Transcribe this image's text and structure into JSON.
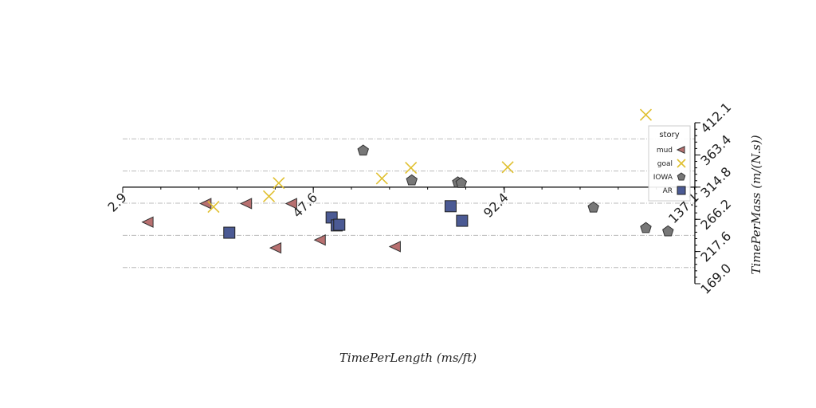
{
  "chart_data": {
    "type": "scatter",
    "xlabel": "TimePerLength (ms/ft)",
    "ylabel": "TimePerMass (m/(N.s))",
    "xlim": [
      2.9,
      137.1
    ],
    "ylim": [
      169.0,
      412.1
    ],
    "x_ticks": [
      "2.9",
      "47.6",
      "92.4",
      "137.1"
    ],
    "y_ticks": [
      "169.0",
      "217.6",
      "266.2",
      "314.8",
      "363.4",
      "412.1"
    ],
    "x_axis_at_y": 314.8,
    "grid": "horizontal dash-dot",
    "legend": {
      "title": "story",
      "placement": "top-right"
    },
    "series": [
      {
        "name": "mud",
        "marker": "triangle-left",
        "color": "#b87070",
        "points": [
          [
            22.5,
            290.0
          ],
          [
            8.9,
            262.0
          ],
          [
            32.0,
            290.0
          ],
          [
            42.6,
            290.0
          ],
          [
            38.9,
            223.0
          ],
          [
            49.3,
            235.0
          ],
          [
            66.9,
            225.0
          ]
        ]
      },
      {
        "name": "goal",
        "marker": "x",
        "color": "#e0c030",
        "points": [
          [
            24.2,
            285.0
          ],
          [
            37.2,
            301.0
          ],
          [
            39.5,
            321.0
          ],
          [
            63.7,
            328.0
          ],
          [
            70.5,
            344.0
          ],
          [
            93.2,
            345.0
          ],
          [
            125.6,
            424.0
          ]
        ]
      },
      {
        "name": "IOWA",
        "marker": "pentagon",
        "color": "#777777",
        "points": [
          [
            59.3,
            370.0
          ],
          [
            70.7,
            325.0
          ],
          [
            81.5,
            322.0
          ],
          [
            82.3,
            321.0
          ],
          [
            113.3,
            284.0
          ],
          [
            125.6,
            253.0
          ],
          [
            130.8,
            248.0
          ]
        ]
      },
      {
        "name": "AR",
        "marker": "square",
        "color": "#4b5a94",
        "points": [
          [
            27.9,
            246.0
          ],
          [
            51.9,
            269.0
          ],
          [
            53.1,
            257.0
          ],
          [
            53.7,
            258.0
          ],
          [
            79.8,
            286.0
          ],
          [
            82.5,
            264.0
          ]
        ]
      }
    ]
  }
}
